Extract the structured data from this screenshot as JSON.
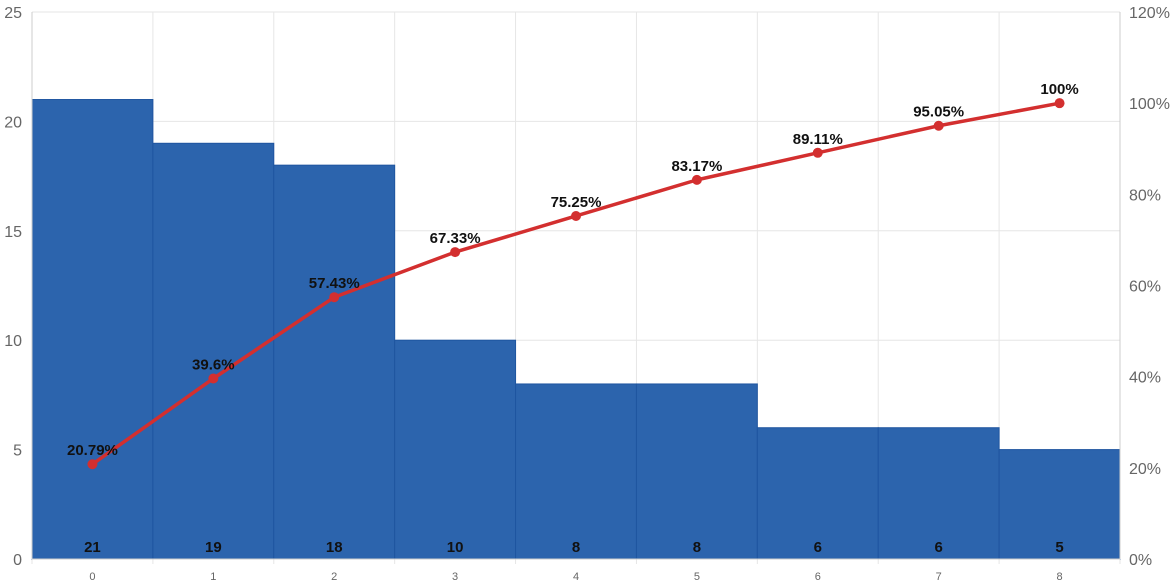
{
  "chart_data": {
    "type": "bar",
    "categories": [
      "0",
      "1",
      "2",
      "3",
      "4",
      "5",
      "6",
      "7",
      "8"
    ],
    "series": [
      {
        "type": "bar",
        "values": [
          21,
          19,
          18,
          10,
          8,
          8,
          6,
          6,
          5
        ],
        "color": "#2c64ad",
        "value_labels": [
          "21",
          "19",
          "18",
          "10",
          "8",
          "8",
          "6",
          "6",
          "5"
        ]
      },
      {
        "type": "line",
        "axis": "right",
        "values": [
          20.79,
          39.6,
          57.43,
          67.33,
          75.25,
          83.17,
          89.11,
          95.05,
          100
        ],
        "color": "#d32f2f",
        "value_labels": [
          "20.79%",
          "39.6%",
          "57.43%",
          "67.33%",
          "75.25%",
          "83.17%",
          "89.11%",
          "95.05%",
          "100%"
        ]
      }
    ],
    "y_left": {
      "lim": [
        0,
        25
      ],
      "ticks": [
        "0",
        "5",
        "10",
        "15",
        "20",
        "25"
      ]
    },
    "y_right": {
      "lim": [
        0,
        120
      ],
      "ticks": [
        "0%",
        "20%",
        "40%",
        "60%",
        "80%",
        "100%",
        "120%"
      ]
    },
    "grid": true,
    "title": "",
    "xlabel": "",
    "ylabel": ""
  }
}
